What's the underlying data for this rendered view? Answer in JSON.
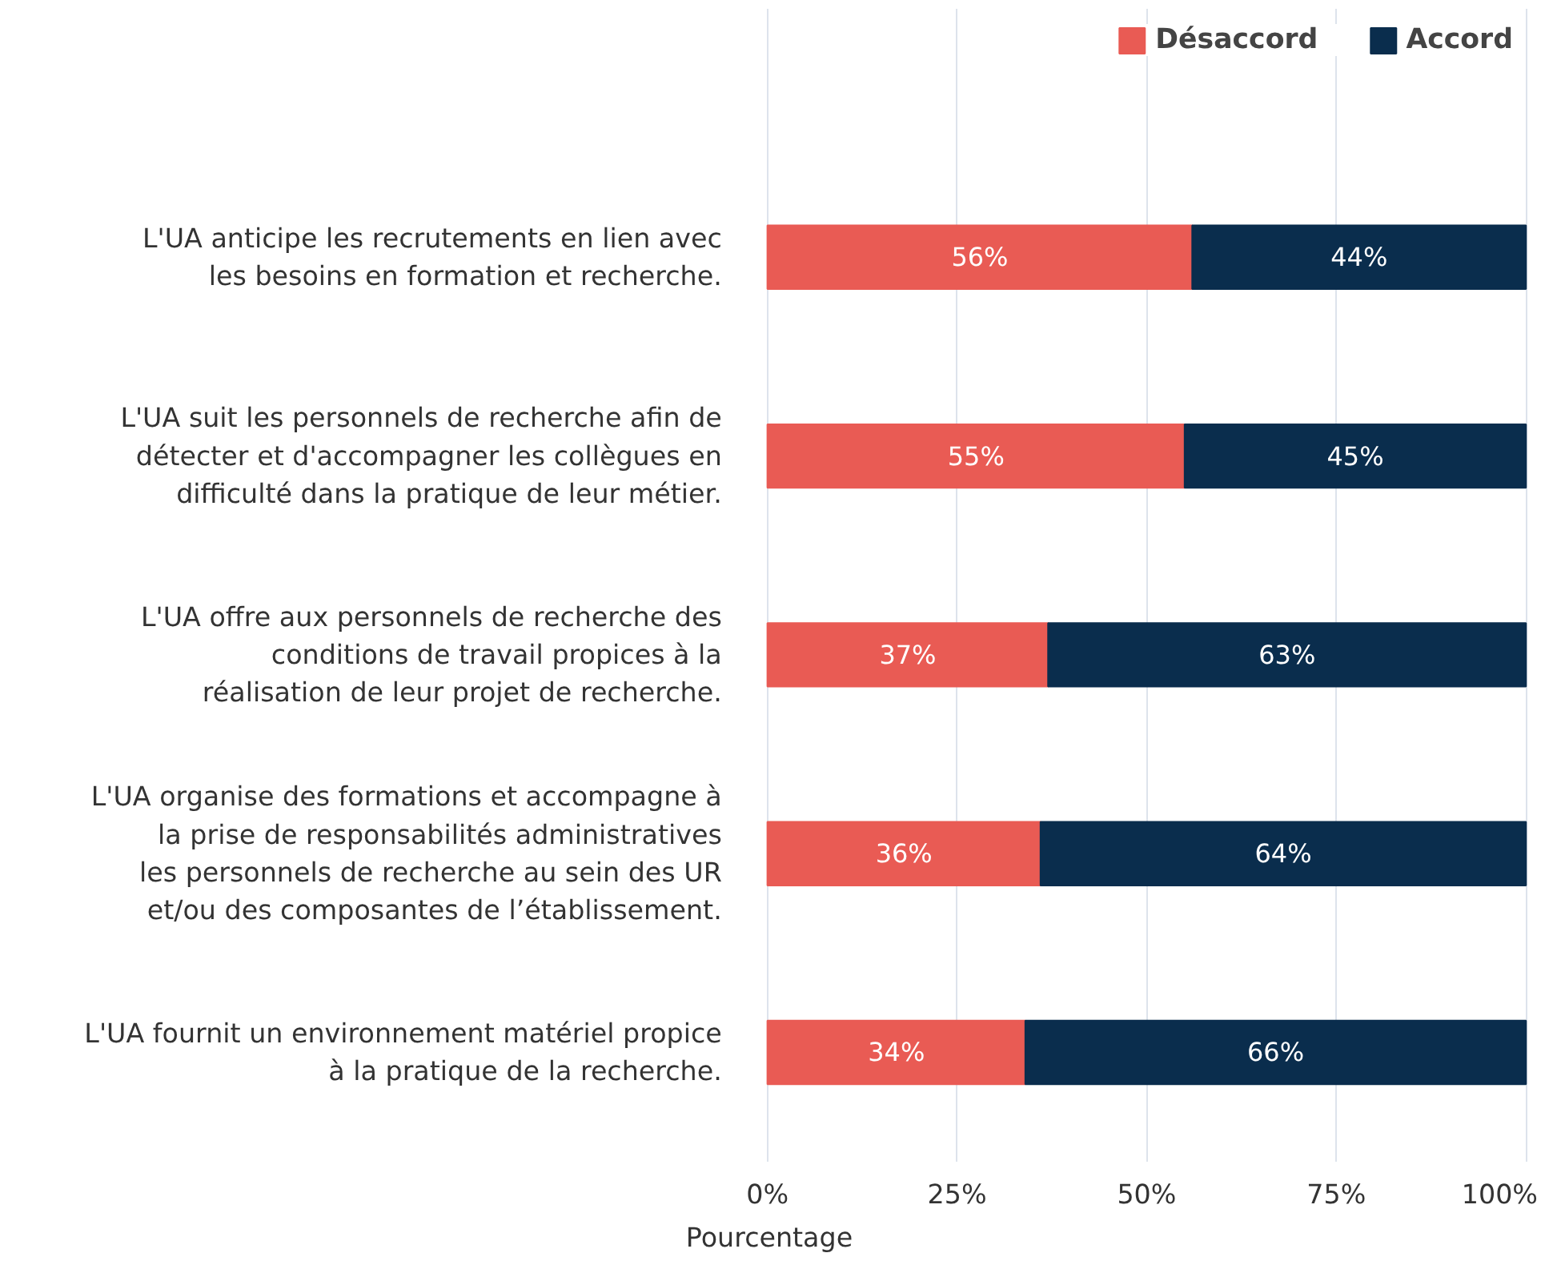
{
  "chart_data": {
    "type": "bar",
    "orientation": "horizontal",
    "stacked": true,
    "categories": [
      "L'UA anticipe les recrutements en lien avec les besoins en formation et recherche.",
      "L'UA suit les personnels de recherche afin de détecter et d'accompagner les collègues en difficulté dans la pratique de leur métier.",
      "L'UA offre aux personnels de recherche des conditions de travail propices à la réalisation de leur projet de recherche.",
      "L'UA organise des formations et accompagne à la prise de responsabilités administratives les personnels de recherche au sein des UR et/ou des composantes de l’établissement.",
      "L'UA fournit un environnement matériel propice à la pratique de la recherche."
    ],
    "series": [
      {
        "name": "Désaccord",
        "color": "#e95b54",
        "values": [
          56,
          55,
          37,
          36,
          34
        ],
        "value_labels": [
          "56%",
          "55%",
          "37%",
          "36%",
          "34%"
        ]
      },
      {
        "name": "Accord",
        "color": "#0a2d4d",
        "values": [
          44,
          45,
          63,
          64,
          66
        ],
        "value_labels": [
          "44%",
          "45%",
          "63%",
          "64%",
          "66%"
        ]
      }
    ],
    "xlim": [
      0,
      100
    ],
    "xticks": [
      {
        "value": 0,
        "label": "0%"
      },
      {
        "value": 25,
        "label": "25%"
      },
      {
        "value": 50,
        "label": "50%"
      },
      {
        "value": 75,
        "label": "75%"
      },
      {
        "value": 100,
        "label": "100%"
      }
    ],
    "xlabel": "Pourcentage",
    "grid": "x",
    "legend": "top right"
  }
}
